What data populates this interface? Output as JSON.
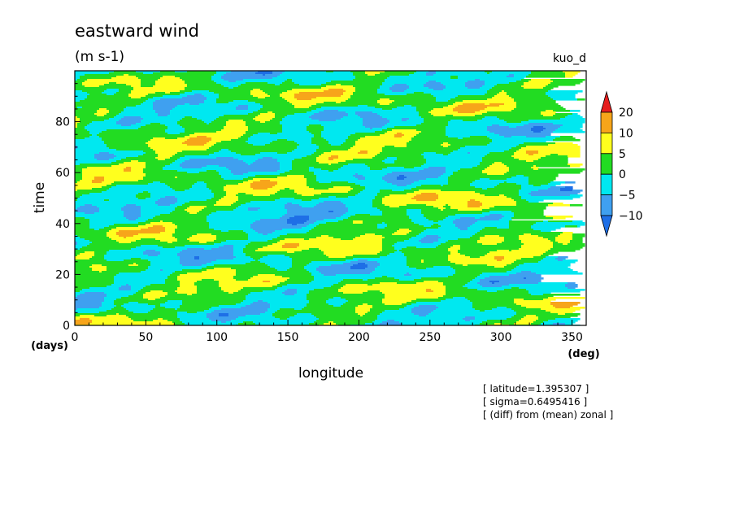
{
  "chart_data": {
    "type": "heatmap",
    "title": "eastward wind",
    "units": "(m s-1)",
    "run_label": "kuo_d",
    "xlabel": "longitude",
    "x_unit": "(deg)",
    "ylabel": "time",
    "y_unit": "(days)",
    "xlim": [
      0,
      360
    ],
    "ylim": [
      0,
      100
    ],
    "x_ticks": [
      0,
      50,
      100,
      150,
      200,
      250,
      300,
      350
    ],
    "y_ticks": [
      0,
      20,
      40,
      60,
      80
    ],
    "colorbar": {
      "labels": [
        "20",
        "10",
        "5",
        "0",
        "−5",
        "−10"
      ],
      "levels": [
        -10,
        -5,
        0,
        5,
        10,
        20
      ],
      "colors": [
        "#1e6fe6",
        "#3fa0f0",
        "#00e8f0",
        "#22dc22",
        "#ffff1e",
        "#f7a51a",
        "#e61e1e"
      ],
      "extend": "both"
    },
    "notes": [
      "[ latitude=1.395307 ]",
      "[ sigma=0.6495416 ]",
      "[ (diff) from (mean) zonal ]"
    ]
  }
}
